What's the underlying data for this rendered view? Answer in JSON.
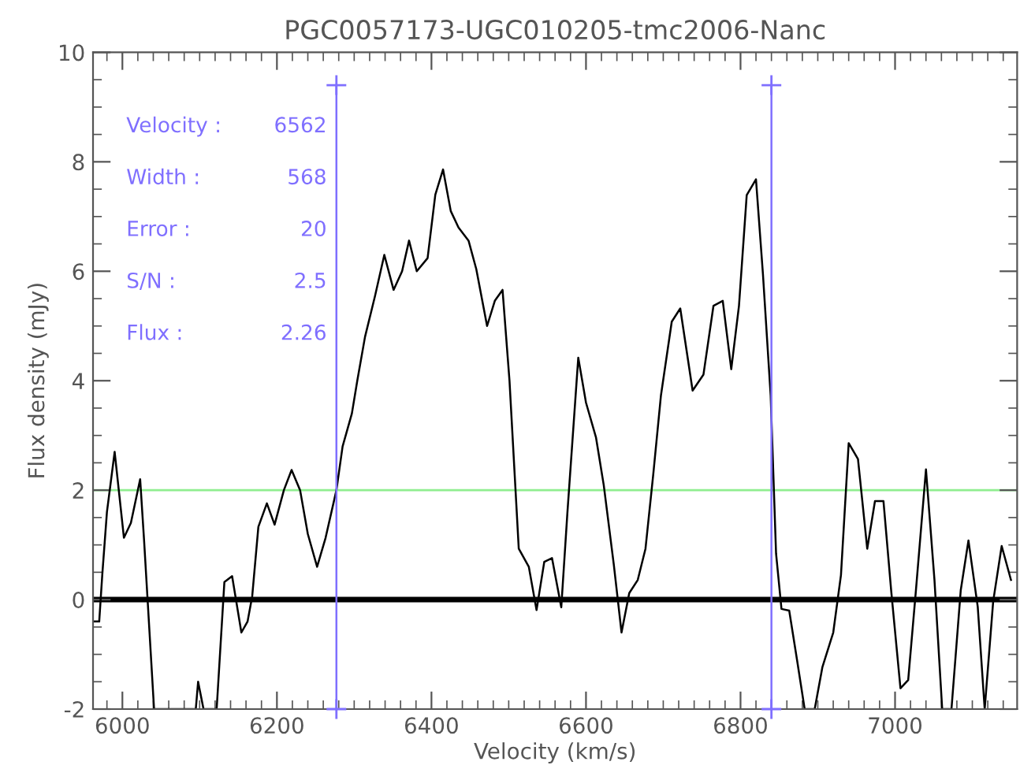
{
  "chart_data": {
    "type": "line",
    "title": "PGC0057173-UGC010205-tmc2006-Nanc",
    "xlabel": "Velocity (km/s)",
    "ylabel": "Flux density (mJy)",
    "xlim": [
      5962,
      7158
    ],
    "ylim": [
      -2,
      10
    ],
    "xticks": [
      6000,
      6200,
      6400,
      6600,
      6800,
      7000
    ],
    "yticks": [
      -2,
      0,
      2,
      4,
      6,
      8,
      10
    ],
    "grid": false,
    "legend": false,
    "series": [
      {
        "color": "#000000",
        "x": [
          5962,
          5970,
          5974,
          5980,
          5990,
          6002,
          6011,
          6023,
          6028,
          6041,
          6095,
          6098,
          6105,
          6122,
          6132,
          6142,
          6154,
          6162,
          6168,
          6176,
          6187,
          6197,
          6209,
          6219,
          6230,
          6240,
          6252,
          6263,
          6277,
          6285,
          6297,
          6304,
          6314,
          6327,
          6339,
          6351,
          6362,
          6371,
          6381,
          6395,
          6405,
          6415,
          6425,
          6435,
          6448,
          6458,
          6472,
          6482,
          6492,
          6501,
          6513,
          6526,
          6536,
          6546,
          6556,
          6568,
          6576,
          6590,
          6600,
          6613,
          6623,
          6636,
          6646,
          6656,
          6667,
          6677,
          6687,
          6697,
          6711,
          6722,
          6738,
          6752,
          6765,
          6777,
          6788,
          6798,
          6808,
          6820,
          6829,
          6839,
          6846,
          6853,
          6863,
          6873,
          6883,
          6896,
          6906,
          6920,
          6930,
          6940,
          6952,
          6964,
          6974,
          6985,
          6995,
          7007,
          7017,
          7027,
          7040,
          7051,
          7061,
          7073,
          7085,
          7095,
          7107,
          7116,
          7127,
          7138,
          7150
        ],
        "values": [
          -0.4,
          -0.4,
          0.46,
          1.6,
          2.7,
          1.13,
          1.4,
          2.2,
          1.1,
          -2,
          -2,
          -1.5,
          -2,
          -2,
          0.32,
          0.43,
          -0.6,
          -0.4,
          0.06,
          1.33,
          1.76,
          1.37,
          2.0,
          2.37,
          2.0,
          1.2,
          0.6,
          1.13,
          2.0,
          2.8,
          3.4,
          4.0,
          4.8,
          5.55,
          6.3,
          5.66,
          6.0,
          6.56,
          6.0,
          6.24,
          7.4,
          7.86,
          7.1,
          6.8,
          6.56,
          6.04,
          5.0,
          5.46,
          5.66,
          4.0,
          0.93,
          0.6,
          -0.19,
          0.69,
          0.76,
          -0.14,
          1.6,
          4.42,
          3.6,
          2.96,
          2.09,
          0.64,
          -0.6,
          0.12,
          0.36,
          0.93,
          2.28,
          3.73,
          5.08,
          5.32,
          3.82,
          4.11,
          5.37,
          5.46,
          4.21,
          5.37,
          7.39,
          7.68,
          5.95,
          3.73,
          0.84,
          -0.17,
          -0.2,
          -1.09,
          -2,
          -2,
          -1.23,
          -0.6,
          0.45,
          2.86,
          2.57,
          0.93,
          1.8,
          1.8,
          0.16,
          -1.62,
          -1.47,
          0.17,
          2.38,
          0.36,
          -2,
          -2,
          0.17,
          1.08,
          -0.13,
          -2,
          -0.03,
          0.98,
          0.36
        ]
      },
      {
        "color": "#7f6fff",
        "marker": "cross",
        "x": [
          6277,
          6277
        ],
        "values": [
          9.4,
          -2
        ]
      },
      {
        "color": "#7f6fff",
        "marker": "cross",
        "x": [
          6840,
          6840
        ],
        "values": [
          9.4,
          -2
        ]
      }
    ],
    "ref_lines": [
      {
        "axis": "y",
        "value": 0,
        "color": "#000000"
      },
      {
        "axis": "y",
        "value": 2,
        "color": "#90ee90"
      }
    ],
    "annotations": [
      "Velocity :",
      "6562",
      "Width :",
      "568",
      "Error :",
      "20",
      "S/N :",
      "2.5",
      "Flux :",
      "2.26"
    ]
  }
}
